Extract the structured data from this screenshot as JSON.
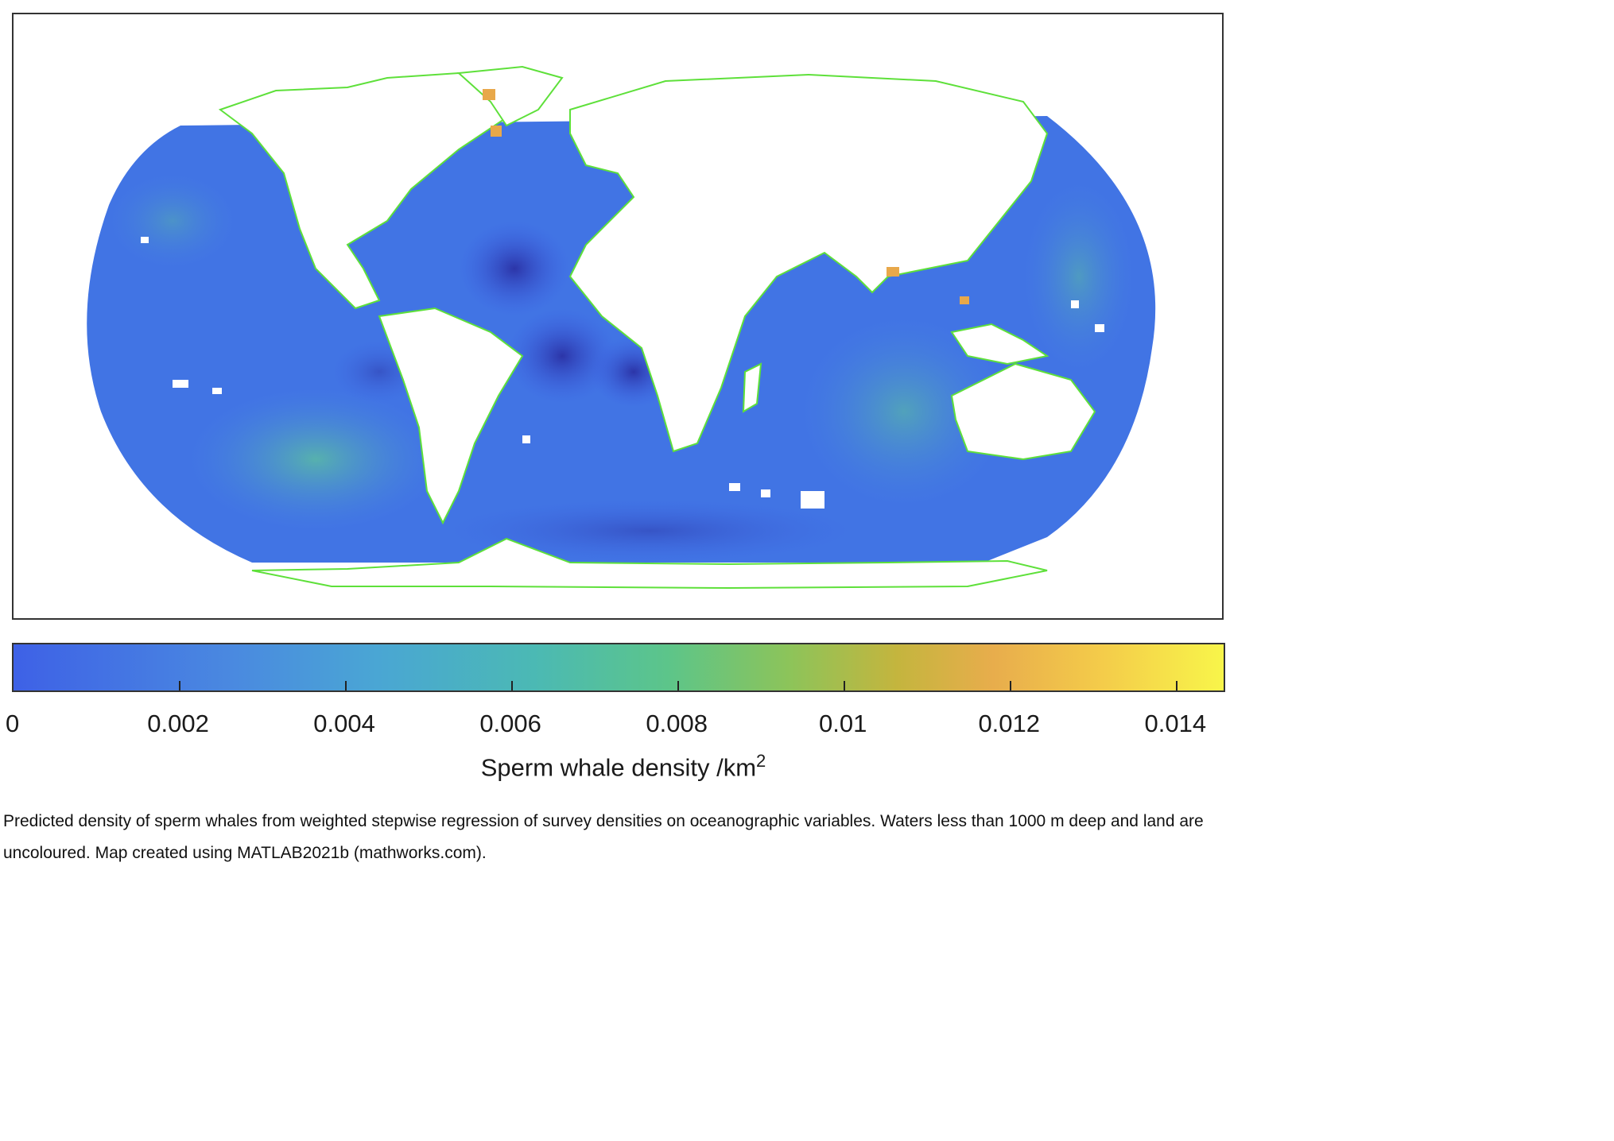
{
  "map": {
    "projection": "world-robinson",
    "coastline_color": "#5ee03a",
    "land_color": "#ffffff",
    "ocean_low_color": "#3e61e6",
    "ocean_mid_color": "#4aa6d4",
    "hotspot_color": "#e8a84a",
    "deep_low_color": "#2c35a8"
  },
  "colorbar": {
    "label_text": "Sperm whale density /km",
    "label_superscript": "2",
    "range": [
      0,
      0.0146
    ],
    "colormap": "parula",
    "ticks": [
      {
        "value": 0,
        "label": "0"
      },
      {
        "value": 0.002,
        "label": "0.002"
      },
      {
        "value": 0.004,
        "label": "0.004"
      },
      {
        "value": 0.006,
        "label": "0.006"
      },
      {
        "value": 0.008,
        "label": "0.008"
      },
      {
        "value": 0.01,
        "label": "0.01"
      },
      {
        "value": 0.012,
        "label": "0.012"
      },
      {
        "value": 0.014,
        "label": "0.014"
      }
    ]
  },
  "caption": {
    "text": "Predicted density of sperm whales from weighted stepwise regression of survey densities on oceanographic variables. Waters less than 1000 m deep and land are uncoloured. Map created using MATLAB2021b (mathworks.com)."
  }
}
